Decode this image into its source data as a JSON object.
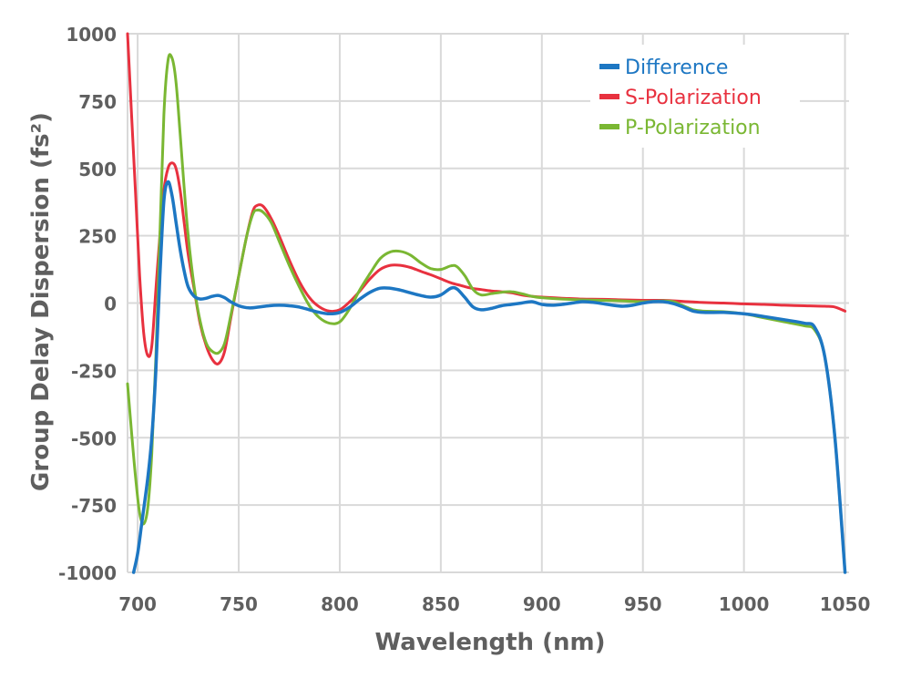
{
  "chart_data": {
    "type": "line",
    "title": "",
    "xlabel": "Wavelength (nm)",
    "ylabel": "Group Delay Dispersion (fs²)",
    "xlim": [
      695,
      1052
    ],
    "ylim": [
      -1000,
      1000
    ],
    "xticks": [
      700,
      750,
      800,
      850,
      900,
      950,
      1000,
      1050
    ],
    "yticks": [
      1000,
      750,
      500,
      250,
      0,
      -250,
      -500,
      -750,
      -1000
    ],
    "xtick_labels": [
      "700",
      "750",
      "800",
      "850",
      "900",
      "950",
      "1000",
      "1050"
    ],
    "ytick_labels": [
      "1000",
      "750",
      "500",
      "250",
      "0",
      "-250",
      "-500",
      "-750",
      "-1000"
    ],
    "grid": true,
    "legend_position": "top-right",
    "series": [
      {
        "name": "S-Polarization",
        "color": "#e8313f",
        "points": [
          [
            695,
            1000
          ],
          [
            697,
            700
          ],
          [
            699,
            400
          ],
          [
            701,
            100
          ],
          [
            703,
            -110
          ],
          [
            705,
            -195
          ],
          [
            707,
            -160
          ],
          [
            709,
            50
          ],
          [
            711,
            250
          ],
          [
            713,
            420
          ],
          [
            715,
            500
          ],
          [
            717,
            520
          ],
          [
            719,
            500
          ],
          [
            721,
            420
          ],
          [
            723,
            300
          ],
          [
            725,
            180
          ],
          [
            728,
            50
          ],
          [
            731,
            -80
          ],
          [
            734,
            -160
          ],
          [
            737,
            -210
          ],
          [
            740,
            -225
          ],
          [
            743,
            -180
          ],
          [
            746,
            -60
          ],
          [
            750,
            100
          ],
          [
            754,
            250
          ],
          [
            757,
            340
          ],
          [
            759,
            362
          ],
          [
            762,
            360
          ],
          [
            766,
            315
          ],
          [
            770,
            250
          ],
          [
            775,
            160
          ],
          [
            780,
            80
          ],
          [
            785,
            20
          ],
          [
            790,
            -15
          ],
          [
            795,
            -30
          ],
          [
            800,
            -25
          ],
          [
            805,
            5
          ],
          [
            810,
            45
          ],
          [
            815,
            90
          ],
          [
            820,
            125
          ],
          [
            825,
            140
          ],
          [
            830,
            140
          ],
          [
            835,
            132
          ],
          [
            840,
            118
          ],
          [
            845,
            105
          ],
          [
            850,
            90
          ],
          [
            855,
            75
          ],
          [
            860,
            65
          ],
          [
            865,
            55
          ],
          [
            870,
            50
          ],
          [
            875,
            45
          ],
          [
            880,
            42
          ],
          [
            885,
            38
          ],
          [
            890,
            30
          ],
          [
            895,
            25
          ],
          [
            900,
            22
          ],
          [
            910,
            18
          ],
          [
            920,
            15
          ],
          [
            930,
            14
          ],
          [
            940,
            12
          ],
          [
            950,
            10
          ],
          [
            960,
            10
          ],
          [
            970,
            6
          ],
          [
            980,
            2
          ],
          [
            990,
            0
          ],
          [
            1000,
            -3
          ],
          [
            1010,
            -5
          ],
          [
            1020,
            -8
          ],
          [
            1030,
            -10
          ],
          [
            1040,
            -12
          ],
          [
            1045,
            -15
          ],
          [
            1050,
            -30
          ]
        ]
      },
      {
        "name": "P-Polarization",
        "color": "#7ab733",
        "points": [
          [
            695,
            -300
          ],
          [
            697,
            -480
          ],
          [
            699,
            -650
          ],
          [
            701,
            -780
          ],
          [
            703,
            -820
          ],
          [
            705,
            -760
          ],
          [
            707,
            -560
          ],
          [
            709,
            -200
          ],
          [
            711,
            250
          ],
          [
            713,
            700
          ],
          [
            715,
            900
          ],
          [
            717,
            910
          ],
          [
            719,
            820
          ],
          [
            721,
            630
          ],
          [
            723,
            430
          ],
          [
            725,
            250
          ],
          [
            728,
            60
          ],
          [
            731,
            -70
          ],
          [
            734,
            -150
          ],
          [
            737,
            -180
          ],
          [
            740,
            -185
          ],
          [
            743,
            -150
          ],
          [
            746,
            -50
          ],
          [
            750,
            100
          ],
          [
            754,
            250
          ],
          [
            757,
            330
          ],
          [
            759,
            345
          ],
          [
            762,
            338
          ],
          [
            766,
            300
          ],
          [
            770,
            230
          ],
          [
            775,
            140
          ],
          [
            780,
            60
          ],
          [
            785,
            -10
          ],
          [
            790,
            -55
          ],
          [
            795,
            -75
          ],
          [
            800,
            -70
          ],
          [
            805,
            -20
          ],
          [
            810,
            50
          ],
          [
            815,
            110
          ],
          [
            820,
            165
          ],
          [
            825,
            190
          ],
          [
            830,
            192
          ],
          [
            835,
            178
          ],
          [
            840,
            150
          ],
          [
            845,
            128
          ],
          [
            850,
            125
          ],
          [
            855,
            138
          ],
          [
            858,
            135
          ],
          [
            862,
            100
          ],
          [
            866,
            50
          ],
          [
            870,
            30
          ],
          [
            875,
            35
          ],
          [
            880,
            40
          ],
          [
            885,
            42
          ],
          [
            890,
            35
          ],
          [
            895,
            25
          ],
          [
            900,
            20
          ],
          [
            910,
            15
          ],
          [
            920,
            12
          ],
          [
            930,
            10
          ],
          [
            940,
            8
          ],
          [
            950,
            5
          ],
          [
            960,
            8
          ],
          [
            965,
            5
          ],
          [
            970,
            -10
          ],
          [
            975,
            -25
          ],
          [
            980,
            -30
          ],
          [
            990,
            -32
          ],
          [
            1000,
            -40
          ],
          [
            1010,
            -55
          ],
          [
            1020,
            -70
          ],
          [
            1030,
            -85
          ],
          [
            1035,
            -100
          ],
          [
            1040,
            -200
          ],
          [
            1045,
            -500
          ],
          [
            1050,
            -1000
          ]
        ]
      },
      {
        "name": "Difference",
        "color": "#1d77c3",
        "points": [
          [
            698,
            -1000
          ],
          [
            700,
            -930
          ],
          [
            702,
            -820
          ],
          [
            705,
            -650
          ],
          [
            707,
            -500
          ],
          [
            709,
            -250
          ],
          [
            711,
            100
          ],
          [
            713,
            380
          ],
          [
            715,
            450
          ],
          [
            717,
            400
          ],
          [
            719,
            300
          ],
          [
            721,
            200
          ],
          [
            723,
            120
          ],
          [
            725,
            60
          ],
          [
            728,
            25
          ],
          [
            731,
            15
          ],
          [
            734,
            18
          ],
          [
            737,
            25
          ],
          [
            740,
            28
          ],
          [
            743,
            20
          ],
          [
            746,
            5
          ],
          [
            750,
            -10
          ],
          [
            755,
            -18
          ],
          [
            760,
            -15
          ],
          [
            765,
            -10
          ],
          [
            770,
            -8
          ],
          [
            775,
            -10
          ],
          [
            780,
            -15
          ],
          [
            785,
            -25
          ],
          [
            790,
            -35
          ],
          [
            795,
            -40
          ],
          [
            800,
            -35
          ],
          [
            805,
            -15
          ],
          [
            810,
            15
          ],
          [
            815,
            40
          ],
          [
            820,
            55
          ],
          [
            825,
            55
          ],
          [
            830,
            48
          ],
          [
            835,
            38
          ],
          [
            840,
            28
          ],
          [
            845,
            22
          ],
          [
            850,
            30
          ],
          [
            855,
            55
          ],
          [
            858,
            52
          ],
          [
            862,
            20
          ],
          [
            866,
            -15
          ],
          [
            870,
            -25
          ],
          [
            875,
            -20
          ],
          [
            880,
            -10
          ],
          [
            885,
            -5
          ],
          [
            890,
            0
          ],
          [
            895,
            5
          ],
          [
            900,
            -5
          ],
          [
            905,
            -8
          ],
          [
            910,
            -5
          ],
          [
            915,
            0
          ],
          [
            920,
            5
          ],
          [
            925,
            3
          ],
          [
            930,
            -2
          ],
          [
            935,
            -8
          ],
          [
            940,
            -12
          ],
          [
            945,
            -8
          ],
          [
            950,
            0
          ],
          [
            955,
            5
          ],
          [
            960,
            5
          ],
          [
            965,
            -2
          ],
          [
            970,
            -15
          ],
          [
            975,
            -30
          ],
          [
            980,
            -35
          ],
          [
            990,
            -35
          ],
          [
            1000,
            -40
          ],
          [
            1010,
            -50
          ],
          [
            1020,
            -62
          ],
          [
            1030,
            -75
          ],
          [
            1035,
            -90
          ],
          [
            1040,
            -200
          ],
          [
            1045,
            -500
          ],
          [
            1050,
            -1000
          ]
        ]
      }
    ]
  }
}
